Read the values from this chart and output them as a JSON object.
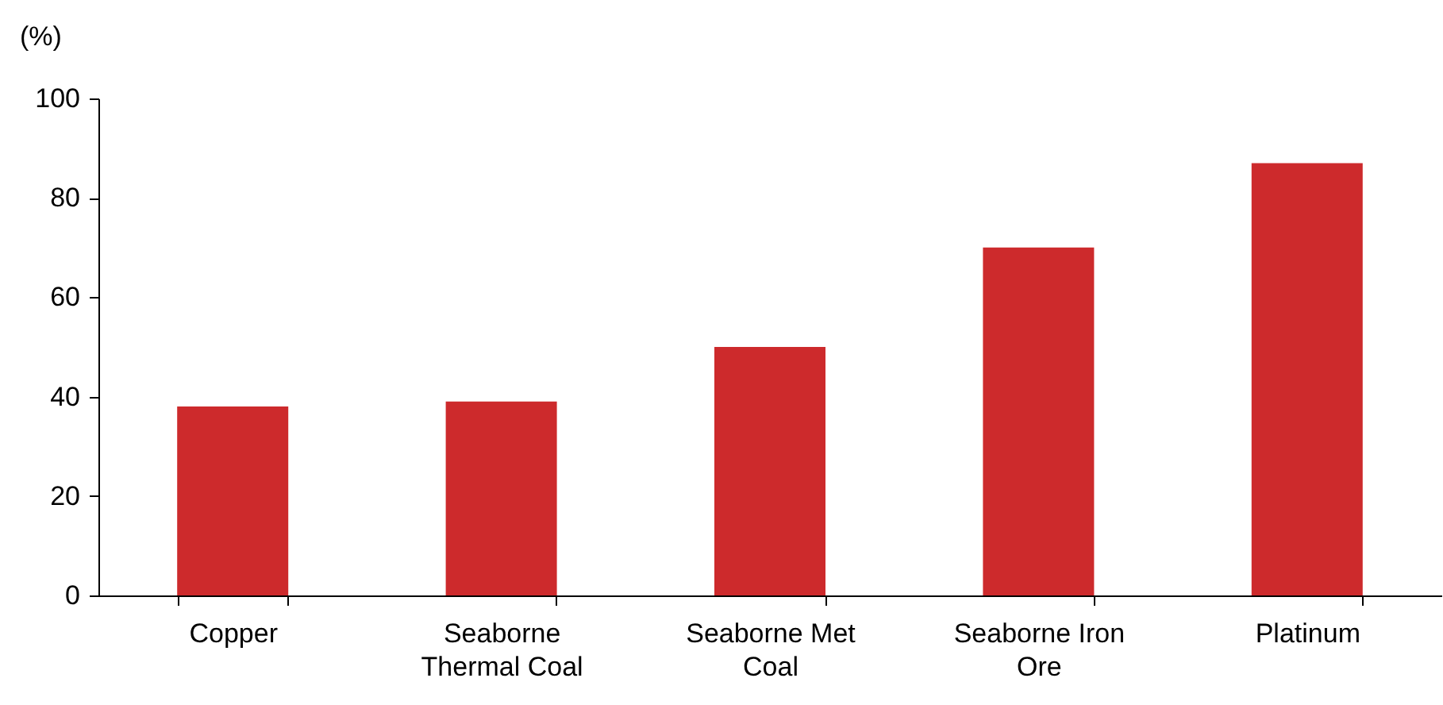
{
  "chart_data": {
    "type": "bar",
    "ylabel": "(%)",
    "categories": [
      "Copper",
      "Seaborne Thermal Coal",
      "Seaborne Met Coal",
      "Seaborne Iron Ore",
      "Platinum"
    ],
    "values": [
      38,
      39,
      50,
      70,
      87
    ],
    "color": "#cd2a2c",
    "ylim": [
      0,
      100
    ],
    "yticks": [
      0,
      20,
      40,
      60,
      80,
      100
    ],
    "grid": false
  }
}
